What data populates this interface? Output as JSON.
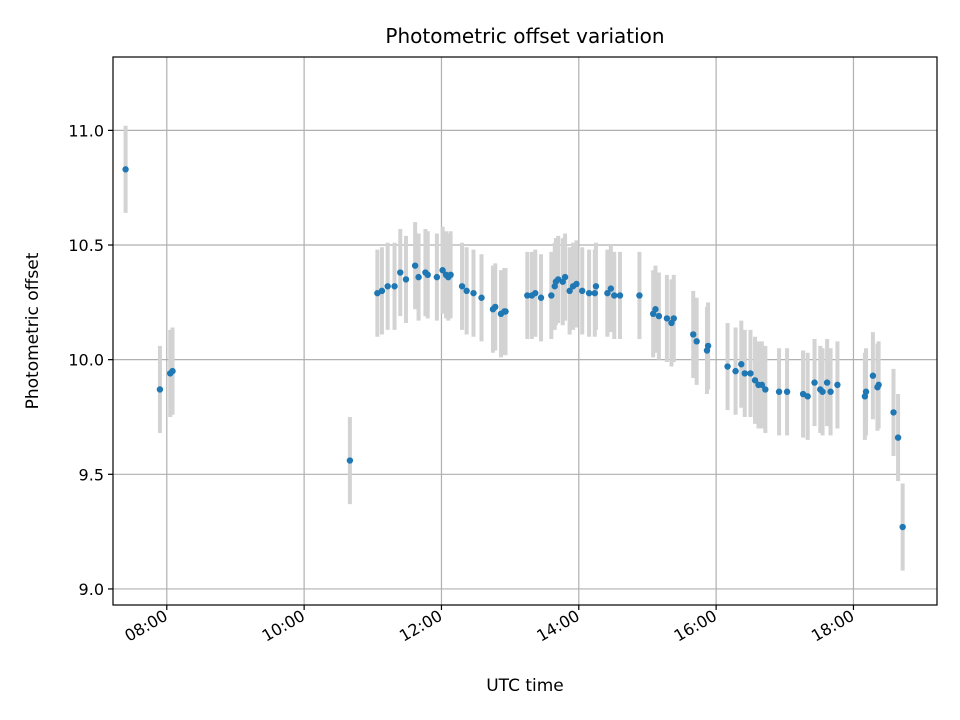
{
  "chart_data": {
    "type": "scatter",
    "title": "Photometric offset variation",
    "xlabel": "UTC time",
    "ylabel": "Photometric offset",
    "x_ticks": [
      "08:00",
      "10:00",
      "12:00",
      "14:00",
      "16:00",
      "18:00"
    ],
    "y_ticks": [
      "9.0",
      "9.5",
      "10.0",
      "10.5",
      "11.0"
    ],
    "xlim": [
      "07:13",
      "19:13"
    ],
    "ylim": [
      8.93,
      11.32
    ],
    "grid": true,
    "colors": {
      "point": "#1f77b4",
      "errorbar": "#d3d3d3",
      "grid": "#b0b0b0"
    },
    "series": [
      {
        "errorbar": 0.19,
        "points": [
          [
            "07:24",
            10.83
          ],
          [
            "07:54",
            9.87
          ],
          [
            "08:03",
            9.94
          ],
          [
            "08:05",
            9.95
          ],
          [
            "10:40",
            9.56
          ],
          [
            "11:04",
            10.29
          ],
          [
            "11:08",
            10.3
          ],
          [
            "11:13",
            10.32
          ],
          [
            "11:19",
            10.32
          ],
          [
            "11:24",
            10.38
          ],
          [
            "11:29",
            10.35
          ],
          [
            "11:37",
            10.41
          ],
          [
            "11:40",
            10.36
          ],
          [
            "11:46",
            10.38
          ],
          [
            "11:48",
            10.37
          ],
          [
            "11:56",
            10.36
          ],
          [
            "12:01",
            10.39
          ],
          [
            "12:04",
            10.37
          ],
          [
            "12:06",
            10.36
          ],
          [
            "12:08",
            10.37
          ],
          [
            "12:18",
            10.32
          ],
          [
            "12:22",
            10.3
          ],
          [
            "12:28",
            10.29
          ],
          [
            "12:35",
            10.27
          ],
          [
            "12:45",
            10.22
          ],
          [
            "12:47",
            10.23
          ],
          [
            "12:52",
            10.2
          ],
          [
            "12:55",
            10.21
          ],
          [
            "12:56",
            10.21
          ],
          [
            "13:15",
            10.28
          ],
          [
            "13:19",
            10.28
          ],
          [
            "13:22",
            10.29
          ],
          [
            "13:27",
            10.27
          ],
          [
            "13:36",
            10.28
          ],
          [
            "13:39",
            10.32
          ],
          [
            "13:40",
            10.34
          ],
          [
            "13:42",
            10.35
          ],
          [
            "13:46",
            10.34
          ],
          [
            "13:48",
            10.36
          ],
          [
            "13:52",
            10.3
          ],
          [
            "13:55",
            10.32
          ],
          [
            "13:58",
            10.33
          ],
          [
            "14:03",
            10.3
          ],
          [
            "14:09",
            10.29
          ],
          [
            "14:14",
            10.29
          ],
          [
            "14:15",
            10.32
          ],
          [
            "14:25",
            10.29
          ],
          [
            "14:28",
            10.31
          ],
          [
            "14:31",
            10.28
          ],
          [
            "14:36",
            10.28
          ],
          [
            "14:53",
            10.28
          ],
          [
            "15:05",
            10.2
          ],
          [
            "15:07",
            10.22
          ],
          [
            "15:10",
            10.19
          ],
          [
            "15:17",
            10.18
          ],
          [
            "15:21",
            10.16
          ],
          [
            "15:23",
            10.18
          ],
          [
            "15:40",
            10.11
          ],
          [
            "15:43",
            10.08
          ],
          [
            "15:52",
            10.04
          ],
          [
            "15:53",
            10.06
          ],
          [
            "16:10",
            9.97
          ],
          [
            "16:17",
            9.95
          ],
          [
            "16:22",
            9.98
          ],
          [
            "16:25",
            9.94
          ],
          [
            "16:30",
            9.94
          ],
          [
            "16:34",
            9.91
          ],
          [
            "16:37",
            9.89
          ],
          [
            "16:40",
            9.89
          ],
          [
            "16:43",
            9.87
          ],
          [
            "16:55",
            9.86
          ],
          [
            "17:02",
            9.86
          ],
          [
            "17:16",
            9.85
          ],
          [
            "17:20",
            9.84
          ],
          [
            "17:26",
            9.9
          ],
          [
            "17:31",
            9.87
          ],
          [
            "17:33",
            9.86
          ],
          [
            "17:37",
            9.9
          ],
          [
            "17:40",
            9.86
          ],
          [
            "17:46",
            9.89
          ],
          [
            "18:10",
            9.84
          ],
          [
            "18:11",
            9.86
          ],
          [
            "18:17",
            9.93
          ],
          [
            "18:21",
            9.88
          ],
          [
            "18:22",
            9.89
          ],
          [
            "18:35",
            9.77
          ],
          [
            "18:39",
            9.66
          ],
          [
            "18:43",
            9.27
          ]
        ]
      }
    ]
  }
}
